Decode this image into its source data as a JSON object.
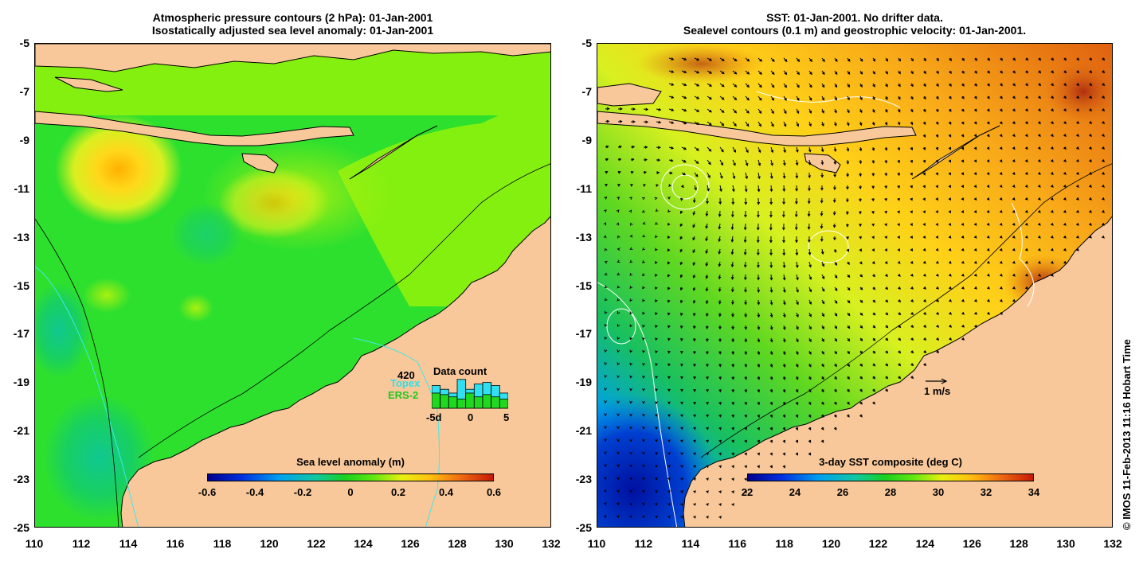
{
  "left": {
    "title_line1": "Atmospheric pressure contours (2 hPa): 01-Jan-2001",
    "title_line2": "Isostatically adjusted sea level anomaly: 01-Jan-2001",
    "colorbar_title": "Sea level anomaly (m)",
    "colorbar_ticks": [
      "-0.6",
      "-0.4",
      "-0.2",
      "0",
      "0.2",
      "0.4",
      "0.6"
    ],
    "data_count": {
      "max_label": "420",
      "title": "Data count",
      "series1": "Topex",
      "series2": "ERS-2",
      "x_ticks": [
        "-5d",
        "0",
        "5"
      ],
      "topex_counts": [
        300,
        250,
        200,
        380,
        250,
        320,
        340,
        300,
        200
      ],
      "ers2_counts": [
        200,
        180,
        150,
        120,
        200,
        150,
        180,
        150,
        120
      ]
    }
  },
  "right": {
    "title_line1": "SST: 01-Jan-2001. No drifter data.",
    "title_line2": "Sealevel contours (0.1 m) and geostrophic velocity: 01-Jan-2001.",
    "colorbar_title": "3-day SST composite (deg C)",
    "colorbar_ticks": [
      "22",
      "24",
      "26",
      "28",
      "30",
      "32",
      "34"
    ],
    "velocity_label": "1 m/s"
  },
  "axes": {
    "y_ticks": [
      "-5",
      "-7",
      "-9",
      "-11",
      "-13",
      "-15",
      "-17",
      "-19",
      "-21",
      "-23",
      "-25"
    ],
    "x_ticks": [
      "110",
      "112",
      "114",
      "116",
      "118",
      "120",
      "122",
      "124",
      "126",
      "128",
      "130",
      "132"
    ]
  },
  "credit": "© IMOS 11-Feb-2013 11:16 Hobart Time",
  "colors": {
    "land": "#f8c89a",
    "sla_main": "#2ee02e",
    "sla_high": "#ffd020",
    "sst_warm": "#f08818"
  }
}
